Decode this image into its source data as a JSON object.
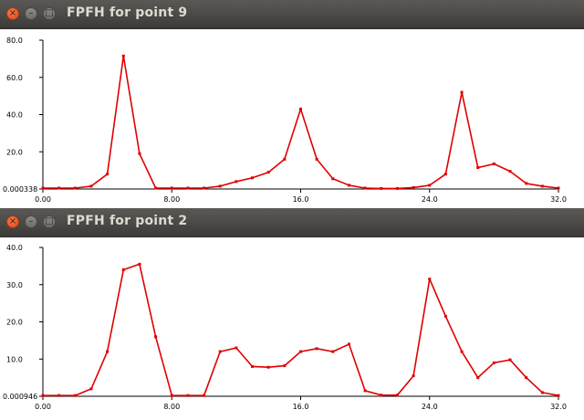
{
  "windows": [
    {
      "title": "FPFH for point 9",
      "buttons": {
        "close": "×",
        "minimize": "–",
        "maximize": "□"
      },
      "chart_data": {
        "type": "line",
        "title": "",
        "xlabel": "",
        "ylabel": "",
        "xlim": [
          0,
          32
        ],
        "ylim": [
          0.000338,
          80
        ],
        "x_ticks": [
          "0.00",
          "8.00",
          "16.0",
          "24.0",
          "32.0"
        ],
        "y_ticks": [
          "0.000338",
          "20.0",
          "40.0",
          "60.0",
          "80.0"
        ],
        "line_color": "#e00000",
        "series": [
          {
            "x": [
              0,
              1,
              2,
              3,
              4,
              5,
              6,
              7,
              8,
              9,
              10,
              11,
              12,
              13,
              14,
              15,
              16,
              17,
              18,
              19,
              20,
              21,
              22,
              23,
              24,
              25,
              26,
              27,
              28,
              29,
              30,
              31,
              32
            ],
            "values": [
              0.5,
              0.5,
              0.5,
              1.5,
              8,
              71.5,
              19,
              0.5,
              0.5,
              0.5,
              0.5,
              1.5,
              4,
              6,
              9,
              16,
              43,
              16,
              5.5,
              2,
              0.5,
              0.3,
              0.3,
              0.8,
              2,
              8,
              52,
              11.5,
              13.5,
              9.5,
              3,
              1.5,
              0.5
            ]
          }
        ]
      }
    },
    {
      "title": "FPFH for point 2",
      "buttons": {
        "close": "×",
        "minimize": "–",
        "maximize": "□"
      },
      "chart_data": {
        "type": "line",
        "title": "",
        "xlabel": "",
        "ylabel": "",
        "xlim": [
          0,
          32
        ],
        "ylim": [
          0.000946,
          40
        ],
        "x_ticks": [
          "0.00",
          "8.00",
          "16.0",
          "24.0",
          "32.0"
        ],
        "y_ticks": [
          "0.000946",
          "10.0",
          "20.0",
          "30.0",
          "40.0"
        ],
        "line_color": "#e00000",
        "series": [
          {
            "x": [
              0,
              1,
              2,
              3,
              4,
              5,
              6,
              7,
              8,
              9,
              10,
              11,
              12,
              13,
              14,
              15,
              16,
              17,
              18,
              19,
              20,
              21,
              22,
              23,
              24,
              25,
              26,
              27,
              28,
              29,
              30,
              31,
              32
            ],
            "values": [
              0.2,
              0.2,
              0.2,
              2,
              12,
              34,
              35.5,
              16,
              0.2,
              0.2,
              0.2,
              12,
              13,
              8,
              7.8,
              8.2,
              12,
              12.8,
              12,
              14,
              1.5,
              0.3,
              0.3,
              5.5,
              31.5,
              21.5,
              12,
              5,
              9,
              9.8,
              5,
              1,
              0.2
            ]
          }
        ]
      }
    }
  ]
}
